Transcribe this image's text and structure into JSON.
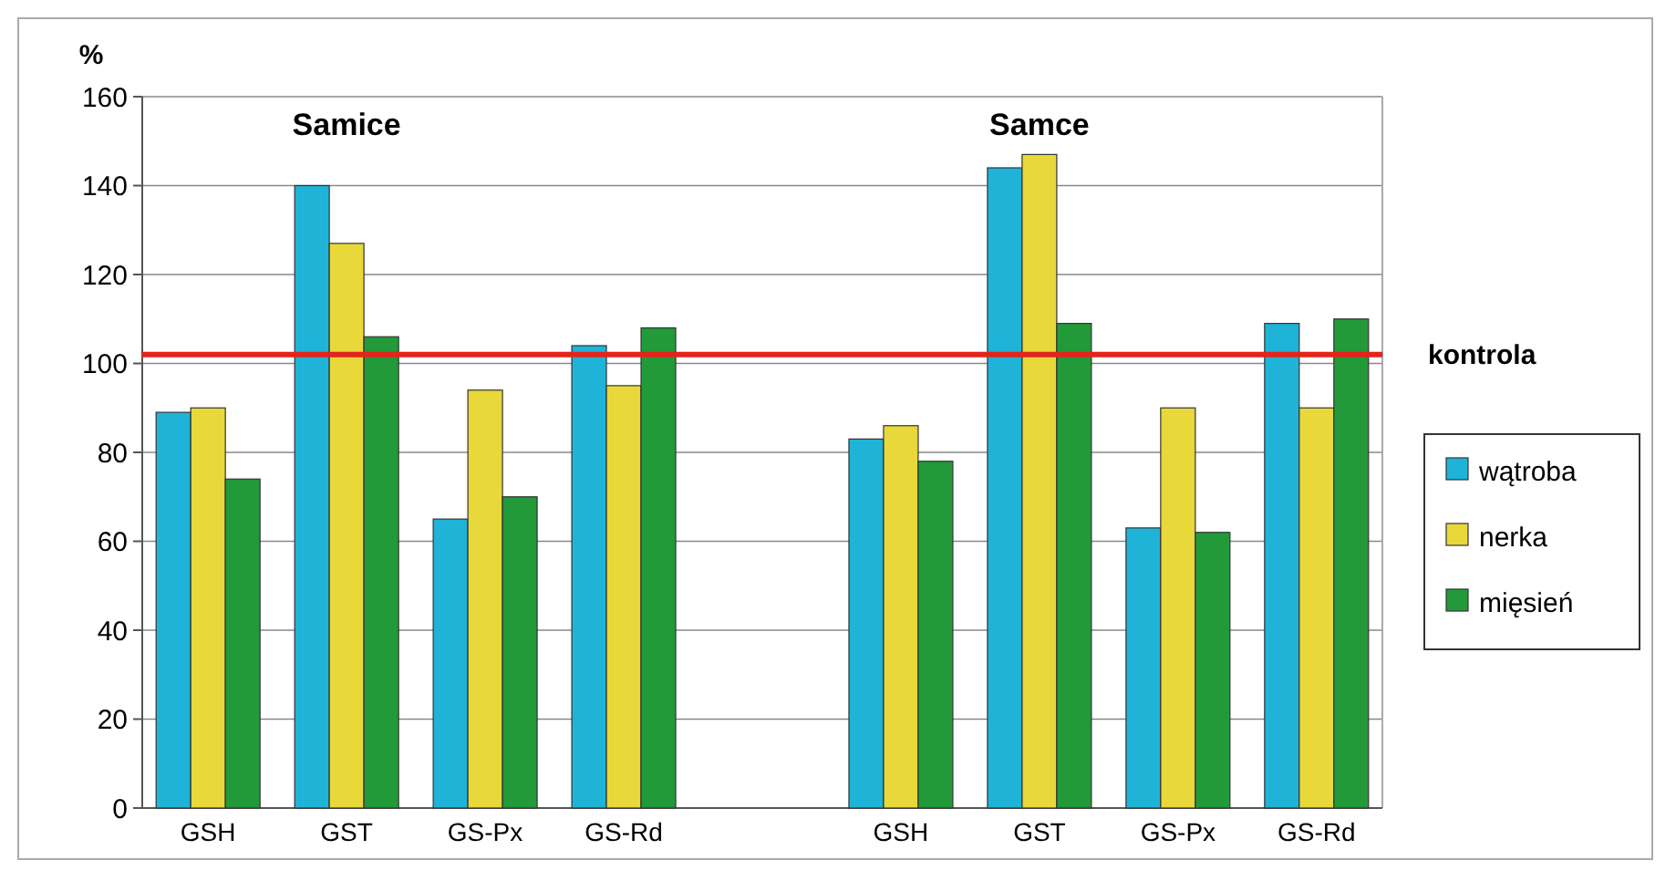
{
  "chart_data": {
    "type": "bar",
    "ylabel": "%",
    "categories": [
      "GSH",
      "GST",
      "GS-Px",
      "GS-Rd",
      null,
      "GSH",
      "GST",
      "GS-Px",
      "GS-Rd"
    ],
    "series": [
      {
        "name": "wątroba",
        "color": "#1fb3d8",
        "values": [
          89,
          140,
          65,
          104,
          null,
          83,
          144,
          63,
          109
        ]
      },
      {
        "name": "nerka",
        "color": "#e8d83a",
        "values": [
          90,
          127,
          94,
          95,
          null,
          86,
          147,
          90,
          90
        ]
      },
      {
        "name": "mięsień",
        "color": "#229a3a",
        "values": [
          74,
          106,
          70,
          108,
          null,
          78,
          109,
          62,
          110
        ]
      }
    ],
    "ylim": [
      0,
      160
    ],
    "yticks": [
      0,
      20,
      40,
      60,
      80,
      100,
      120,
      140,
      160
    ],
    "grid": "y",
    "legend": "right",
    "ref_lines": [
      {
        "axis": "y",
        "value": 102,
        "label": "kontrola",
        "color": "#e3241b"
      }
    ],
    "annotations": [
      "Samice",
      "Samce"
    ]
  }
}
